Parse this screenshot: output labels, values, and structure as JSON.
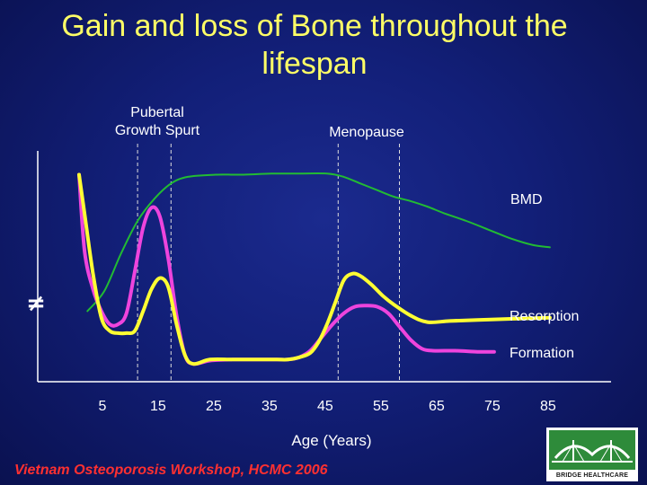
{
  "title_line1": "Gain and loss of Bone throughout the",
  "title_line2": "lifespan",
  "annotations": {
    "pubertal_line1": "Pubertal",
    "pubertal_line2": "Growth Spurt",
    "menopause": "Menopause",
    "ybreak_symbol": "≠"
  },
  "footer": "Vietnam Osteoporosis Workshop, HCMC 2006",
  "logo_text": "BRIDGE HEALTHCARE",
  "colors": {
    "title": "#ffff66",
    "bmd": "#22bb33",
    "resorption": "#ffff33",
    "formation": "#ee44dd",
    "footer": "#ff3030",
    "logo_green": "#2e8b3a"
  },
  "chart_data": {
    "type": "line",
    "title": "Gain and loss of Bone throughout the lifespan",
    "xlabel": "Age (Years)",
    "ylabel": "",
    "x_ticks": [
      5,
      15,
      25,
      35,
      45,
      55,
      65,
      75,
      85
    ],
    "xlim": [
      0,
      90
    ],
    "ylim": [
      0,
      100
    ],
    "grid": false,
    "legend": "inline labels at right end of each series",
    "reference_lines": [
      {
        "x": 11,
        "label": "Pubertal Growth Spurt"
      },
      {
        "x": 17,
        "label": "Pubertal Growth Spurt"
      },
      {
        "x": 47,
        "label": "Menopause"
      },
      {
        "x": 58,
        "label": "Menopause"
      }
    ],
    "series": [
      {
        "name": "BMD",
        "x": [
          2,
          5,
          8,
          11,
          14,
          17,
          20,
          25,
          30,
          35,
          40,
          45,
          48,
          51,
          54,
          57,
          60,
          63,
          66,
          70,
          74,
          78,
          82,
          85
        ],
        "y": [
          28,
          37,
          54,
          69,
          79,
          86,
          89,
          90,
          90,
          90.5,
          90.5,
          90.5,
          89,
          86,
          83,
          80,
          78,
          75.5,
          72.5,
          69,
          65,
          61,
          58,
          57
        ]
      },
      {
        "name": "Resorption",
        "x": [
          0.5,
          1.5,
          3,
          4.5,
          6,
          7.5,
          9,
          10.5,
          12,
          13.5,
          15,
          16.5,
          18,
          19.5,
          21,
          24,
          28,
          32,
          36,
          38,
          40,
          42,
          43.5,
          45,
          46.5,
          48,
          49.5,
          51,
          53,
          55,
          57,
          60,
          63,
          67,
          72,
          78,
          85
        ],
        "y": [
          90,
          72,
          45,
          25,
          19,
          18,
          18,
          19,
          28,
          38,
          43,
          39,
          22,
          8,
          4,
          6,
          6,
          6,
          6,
          6,
          7,
          9,
          14,
          22,
          32,
          42,
          45,
          44,
          40,
          35,
          31,
          26,
          23,
          23.5,
          24,
          24.5,
          25
        ]
      },
      {
        "name": "Formation",
        "x": [
          0.5,
          1.5,
          3,
          4.5,
          6,
          7.5,
          9,
          10.5,
          12,
          13.5,
          15,
          16.5,
          18,
          19.5,
          21,
          24,
          28,
          32,
          36,
          38,
          40,
          42,
          44,
          46,
          48,
          50,
          52,
          54,
          56,
          58,
          60,
          62,
          64,
          68,
          72,
          75
        ],
        "y": [
          90,
          55,
          38,
          28,
          22,
          22,
          27,
          46,
          66,
          75,
          71,
          52,
          26,
          8,
          4,
          5.5,
          6,
          6,
          6,
          6,
          7,
          10,
          16,
          22,
          27,
          30,
          30.5,
          30,
          27,
          21,
          15,
          11,
          10,
          10,
          9.5,
          9.5
        ]
      }
    ]
  }
}
